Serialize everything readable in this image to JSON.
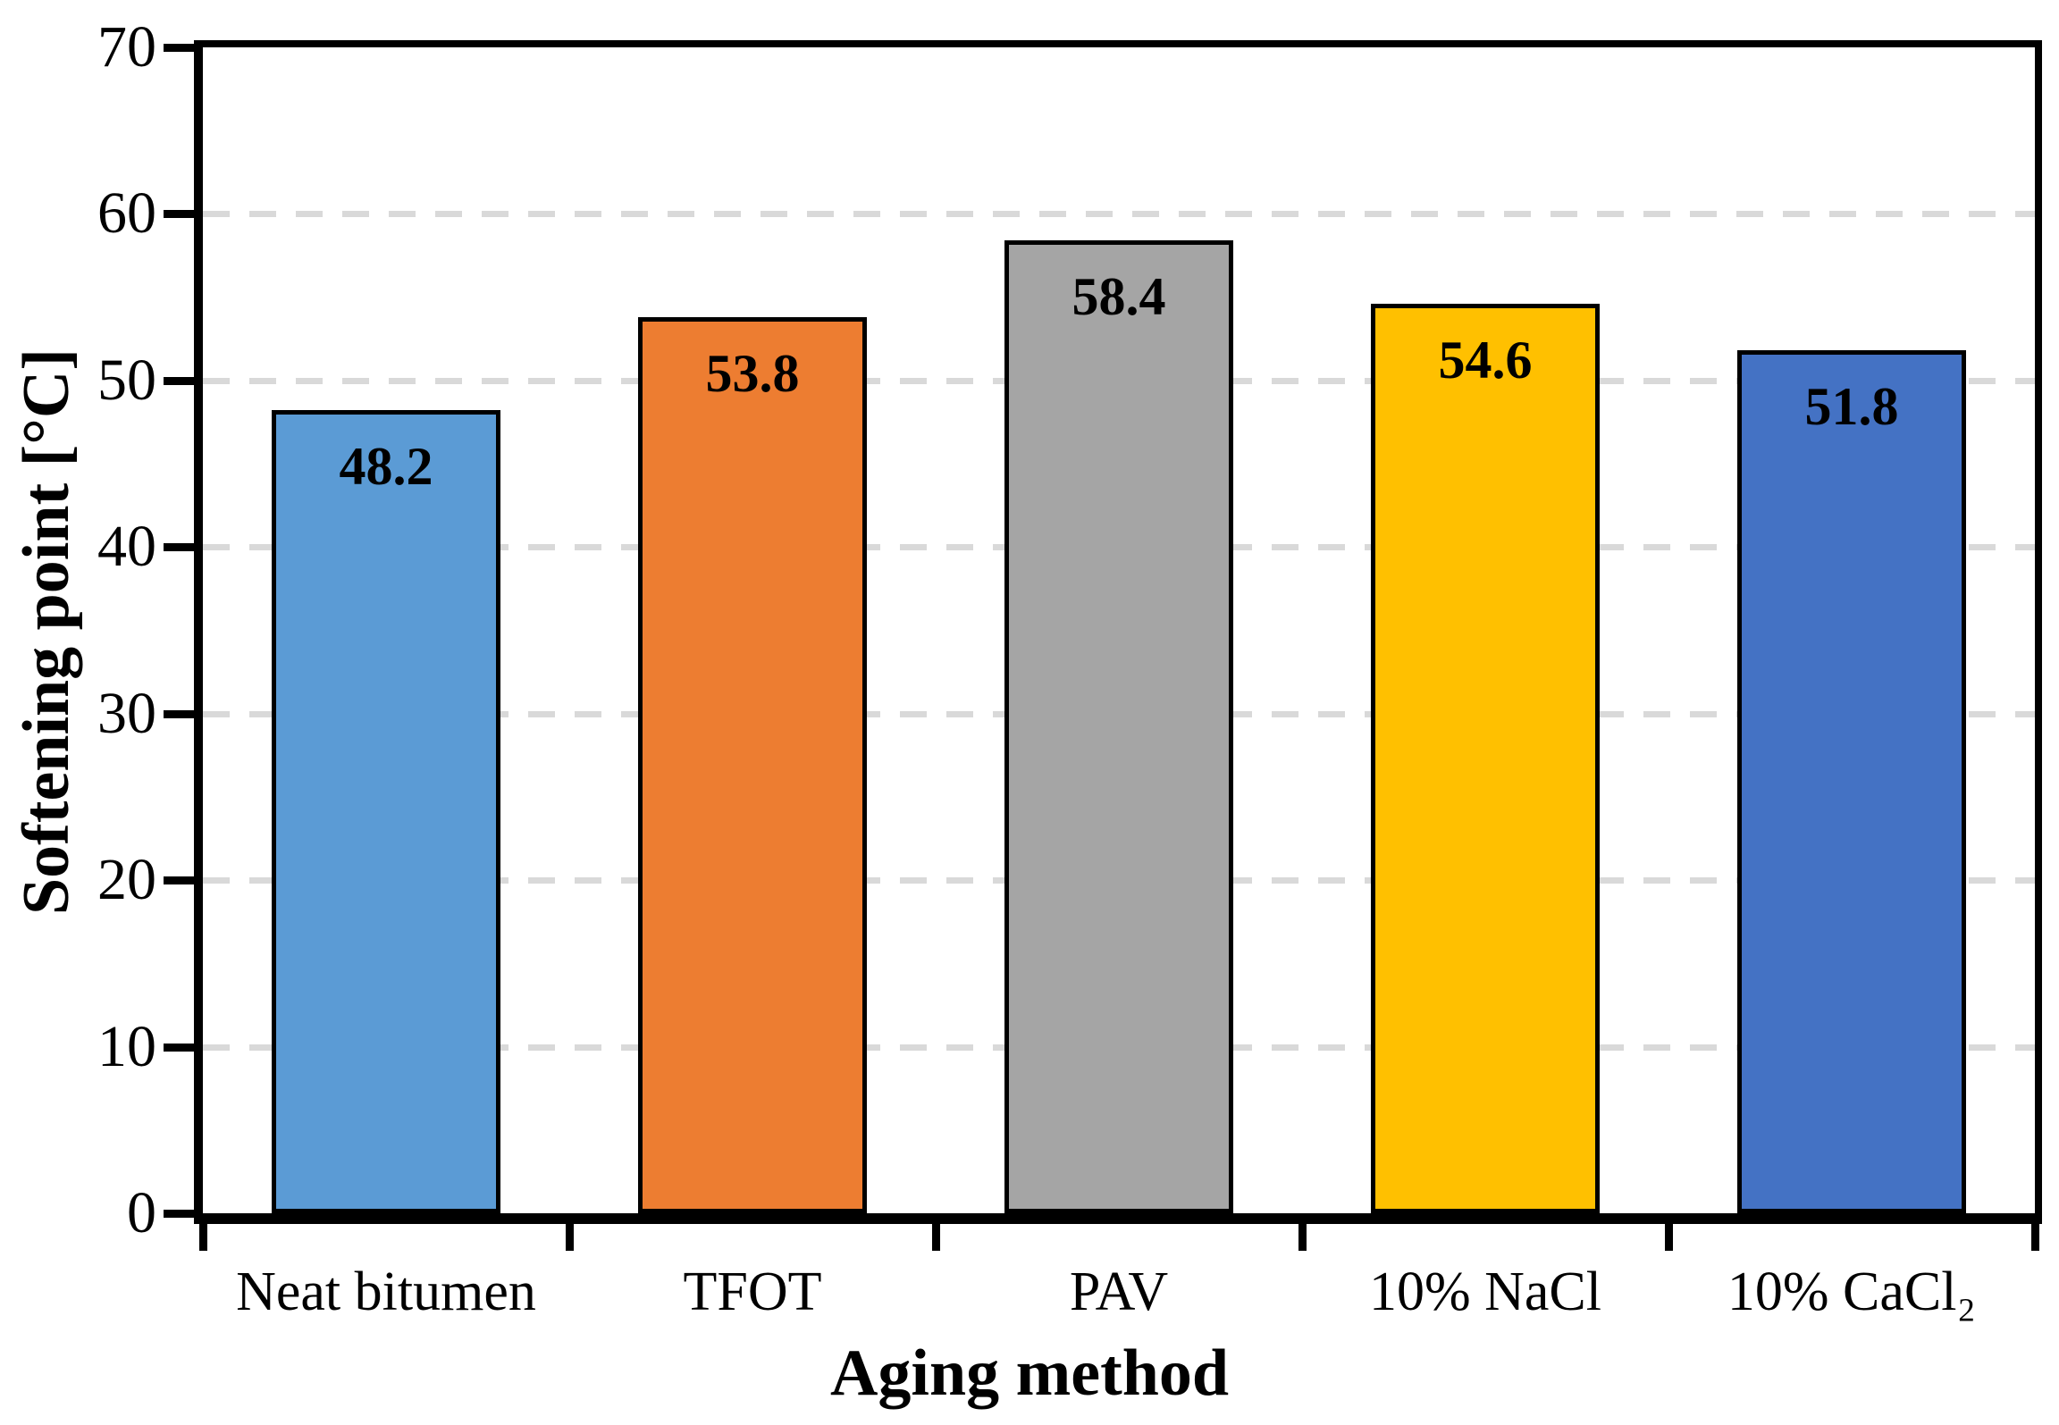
{
  "chart_data": {
    "type": "bar",
    "title": "",
    "xlabel": "Aging method",
    "ylabel": "Softening point [°C]",
    "categories": [
      "Neat bitumen",
      "TFOT",
      "PAV",
      "10% NaCl",
      "10% CaCl₂"
    ],
    "values": [
      48.2,
      53.8,
      58.4,
      54.6,
      51.8
    ],
    "value_labels": [
      "48.2",
      "53.8",
      "58.4",
      "54.6",
      "51.8"
    ],
    "bar_colors": [
      "#5B9BD5",
      "#ED7D31",
      "#A5A5A5",
      "#FFC000",
      "#4472C4"
    ],
    "bar_border_color": "#000000",
    "ylim": [
      0,
      70
    ],
    "ytick_step": 10,
    "yticks": [
      0,
      10,
      20,
      30,
      40,
      50,
      60,
      70
    ],
    "ytick_labels": [
      "0",
      "10",
      "20",
      "30",
      "40",
      "50",
      "60",
      "70"
    ],
    "grid": "horizontal-dashed",
    "gridline_color": "#D9D9D9",
    "axis_color": "#000000",
    "background_color": "#FFFFFF",
    "legend_position": "none",
    "value_label_position": "inside-top"
  }
}
